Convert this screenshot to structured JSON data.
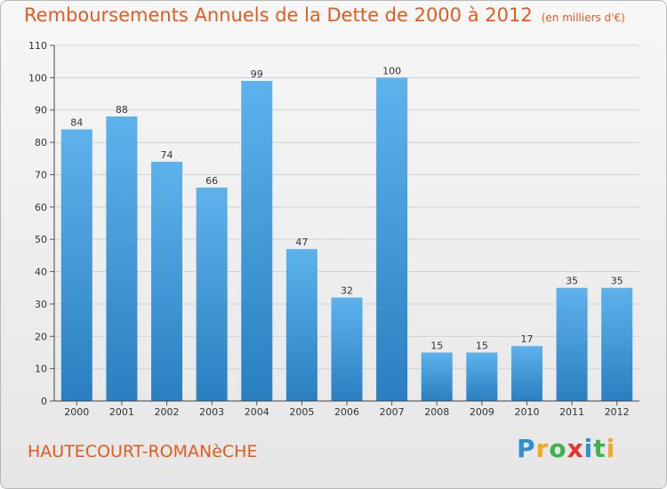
{
  "title": "Remboursements Annuels de la Dette de 2000 à 2012",
  "subtitle": "(en milliers d'€)",
  "commune": "HAUTECOURT-ROMANèCHE",
  "logo": {
    "letters": [
      "P",
      "r",
      "o",
      "x",
      "i",
      "t",
      "i"
    ],
    "colors": [
      "#2e8fd6",
      "#f5a623",
      "#3cb44b",
      "#e8322e",
      "#2e8fd6",
      "#3cb44b",
      "#f5a623"
    ]
  },
  "colors": {
    "bar_light": "#5eb2ec",
    "bar_dark": "#2a7fc1",
    "accent": "#e05c1f"
  },
  "chart_data": {
    "type": "bar",
    "title": "Remboursements Annuels de la Dette de 2000 à 2012",
    "subtitle": "(en milliers d'€)",
    "categories": [
      "2000",
      "2001",
      "2002",
      "2003",
      "2004",
      "2005",
      "2006",
      "2007",
      "2008",
      "2009",
      "2010",
      "2011",
      "2012"
    ],
    "values": [
      84,
      88,
      74,
      66,
      99,
      47,
      32,
      100,
      15,
      15,
      17,
      35,
      35
    ],
    "ylim": [
      0,
      110
    ],
    "yticks": [
      0,
      10,
      20,
      30,
      40,
      50,
      60,
      70,
      80,
      90,
      100,
      110
    ],
    "grid": true,
    "legend": "none"
  }
}
